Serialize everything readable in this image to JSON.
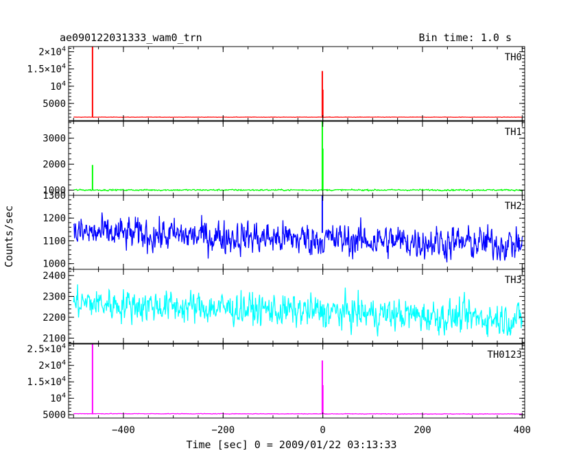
{
  "chart_data": {
    "type": "line",
    "title": "ae090122031333_wam0_trn",
    "bin_time": "Bin time: 1.0 s",
    "xlabel": "Time [sec] 0 = 2009/01/22 03:13:33",
    "ylabel": "Counts/sec",
    "xlim": [
      -510,
      405
    ],
    "xticks": [
      -400,
      -200,
      0,
      200,
      400
    ],
    "xtick_labels": [
      "−400",
      "−200",
      "0",
      "200",
      "400"
    ],
    "panels": [
      {
        "name": "TH0",
        "color": "#ff0000",
        "ylim": [
          0,
          21500
        ],
        "yticks": [
          5000,
          10000,
          15000,
          20000
        ],
        "ytick_labels": [
          {
            "m": "5000",
            "e": ""
          },
          {
            "m": "10",
            "e": "4"
          },
          {
            "m": "1.5×10",
            "e": "4"
          },
          {
            "m": "2×10",
            "e": "4"
          }
        ],
        "baseline": 1000,
        "noise": 35,
        "trend": 0,
        "spikes": [
          {
            "x": -462,
            "y": 21500
          },
          {
            "x": -1,
            "y": 14400
          },
          {
            "x": 0,
            "y": 9000
          }
        ]
      },
      {
        "name": "TH1",
        "color": "#00ff00",
        "ylim": [
          800,
          3650
        ],
        "yticks": [
          1000,
          2000,
          3000
        ],
        "ytick_labels": [
          {
            "m": "1000",
            "e": ""
          },
          {
            "m": "2000",
            "e": ""
          },
          {
            "m": "3000",
            "e": ""
          }
        ],
        "baseline": 1005,
        "noise": 20,
        "trend": 0,
        "spikes": [
          {
            "x": -462,
            "y": 1970
          },
          {
            "x": -1,
            "y": 3650
          },
          {
            "x": 0,
            "y": 2600
          }
        ]
      },
      {
        "name": "TH2",
        "color": "#0000ff",
        "ylim": [
          975,
          1300
        ],
        "yticks": [
          1000,
          1100,
          1200,
          1300
        ],
        "ytick_labels": [
          {
            "m": "1000",
            "e": ""
          },
          {
            "m": "1100",
            "e": ""
          },
          {
            "m": "1200",
            "e": ""
          },
          {
            "m": "1300",
            "e": ""
          }
        ],
        "baseline": 1135,
        "noise": 52,
        "trend": -50,
        "spikes": [
          {
            "x": -1,
            "y": 1300
          }
        ]
      },
      {
        "name": "TH3",
        "color": "#00ffff",
        "ylim": [
          2075,
          2430
        ],
        "yticks": [
          2100,
          2200,
          2300,
          2400
        ],
        "ytick_labels": [
          {
            "m": "2100",
            "e": ""
          },
          {
            "m": "2200",
            "e": ""
          },
          {
            "m": "2300",
            "e": ""
          },
          {
            "m": "2400",
            "e": ""
          }
        ],
        "baseline": 2270,
        "noise": 55,
        "trend": -80,
        "spikes": []
      },
      {
        "name": "TH0123",
        "color": "#ff00ff",
        "ylim": [
          4000,
          26500
        ],
        "yticks": [
          5000,
          10000,
          15000,
          20000,
          25000
        ],
        "ytick_labels": [
          {
            "m": "5000",
            "e": ""
          },
          {
            "m": "10",
            "e": "4"
          },
          {
            "m": "1.5×10",
            "e": "4"
          },
          {
            "m": "2×10",
            "e": "4"
          },
          {
            "m": "2.5×10",
            "e": "4"
          }
        ],
        "baseline": 5330,
        "noise": 60,
        "trend": -100,
        "spikes": [
          {
            "x": -462,
            "y": 26500
          },
          {
            "x": -1,
            "y": 21500
          },
          {
            "x": 0,
            "y": 14000
          }
        ]
      }
    ]
  }
}
